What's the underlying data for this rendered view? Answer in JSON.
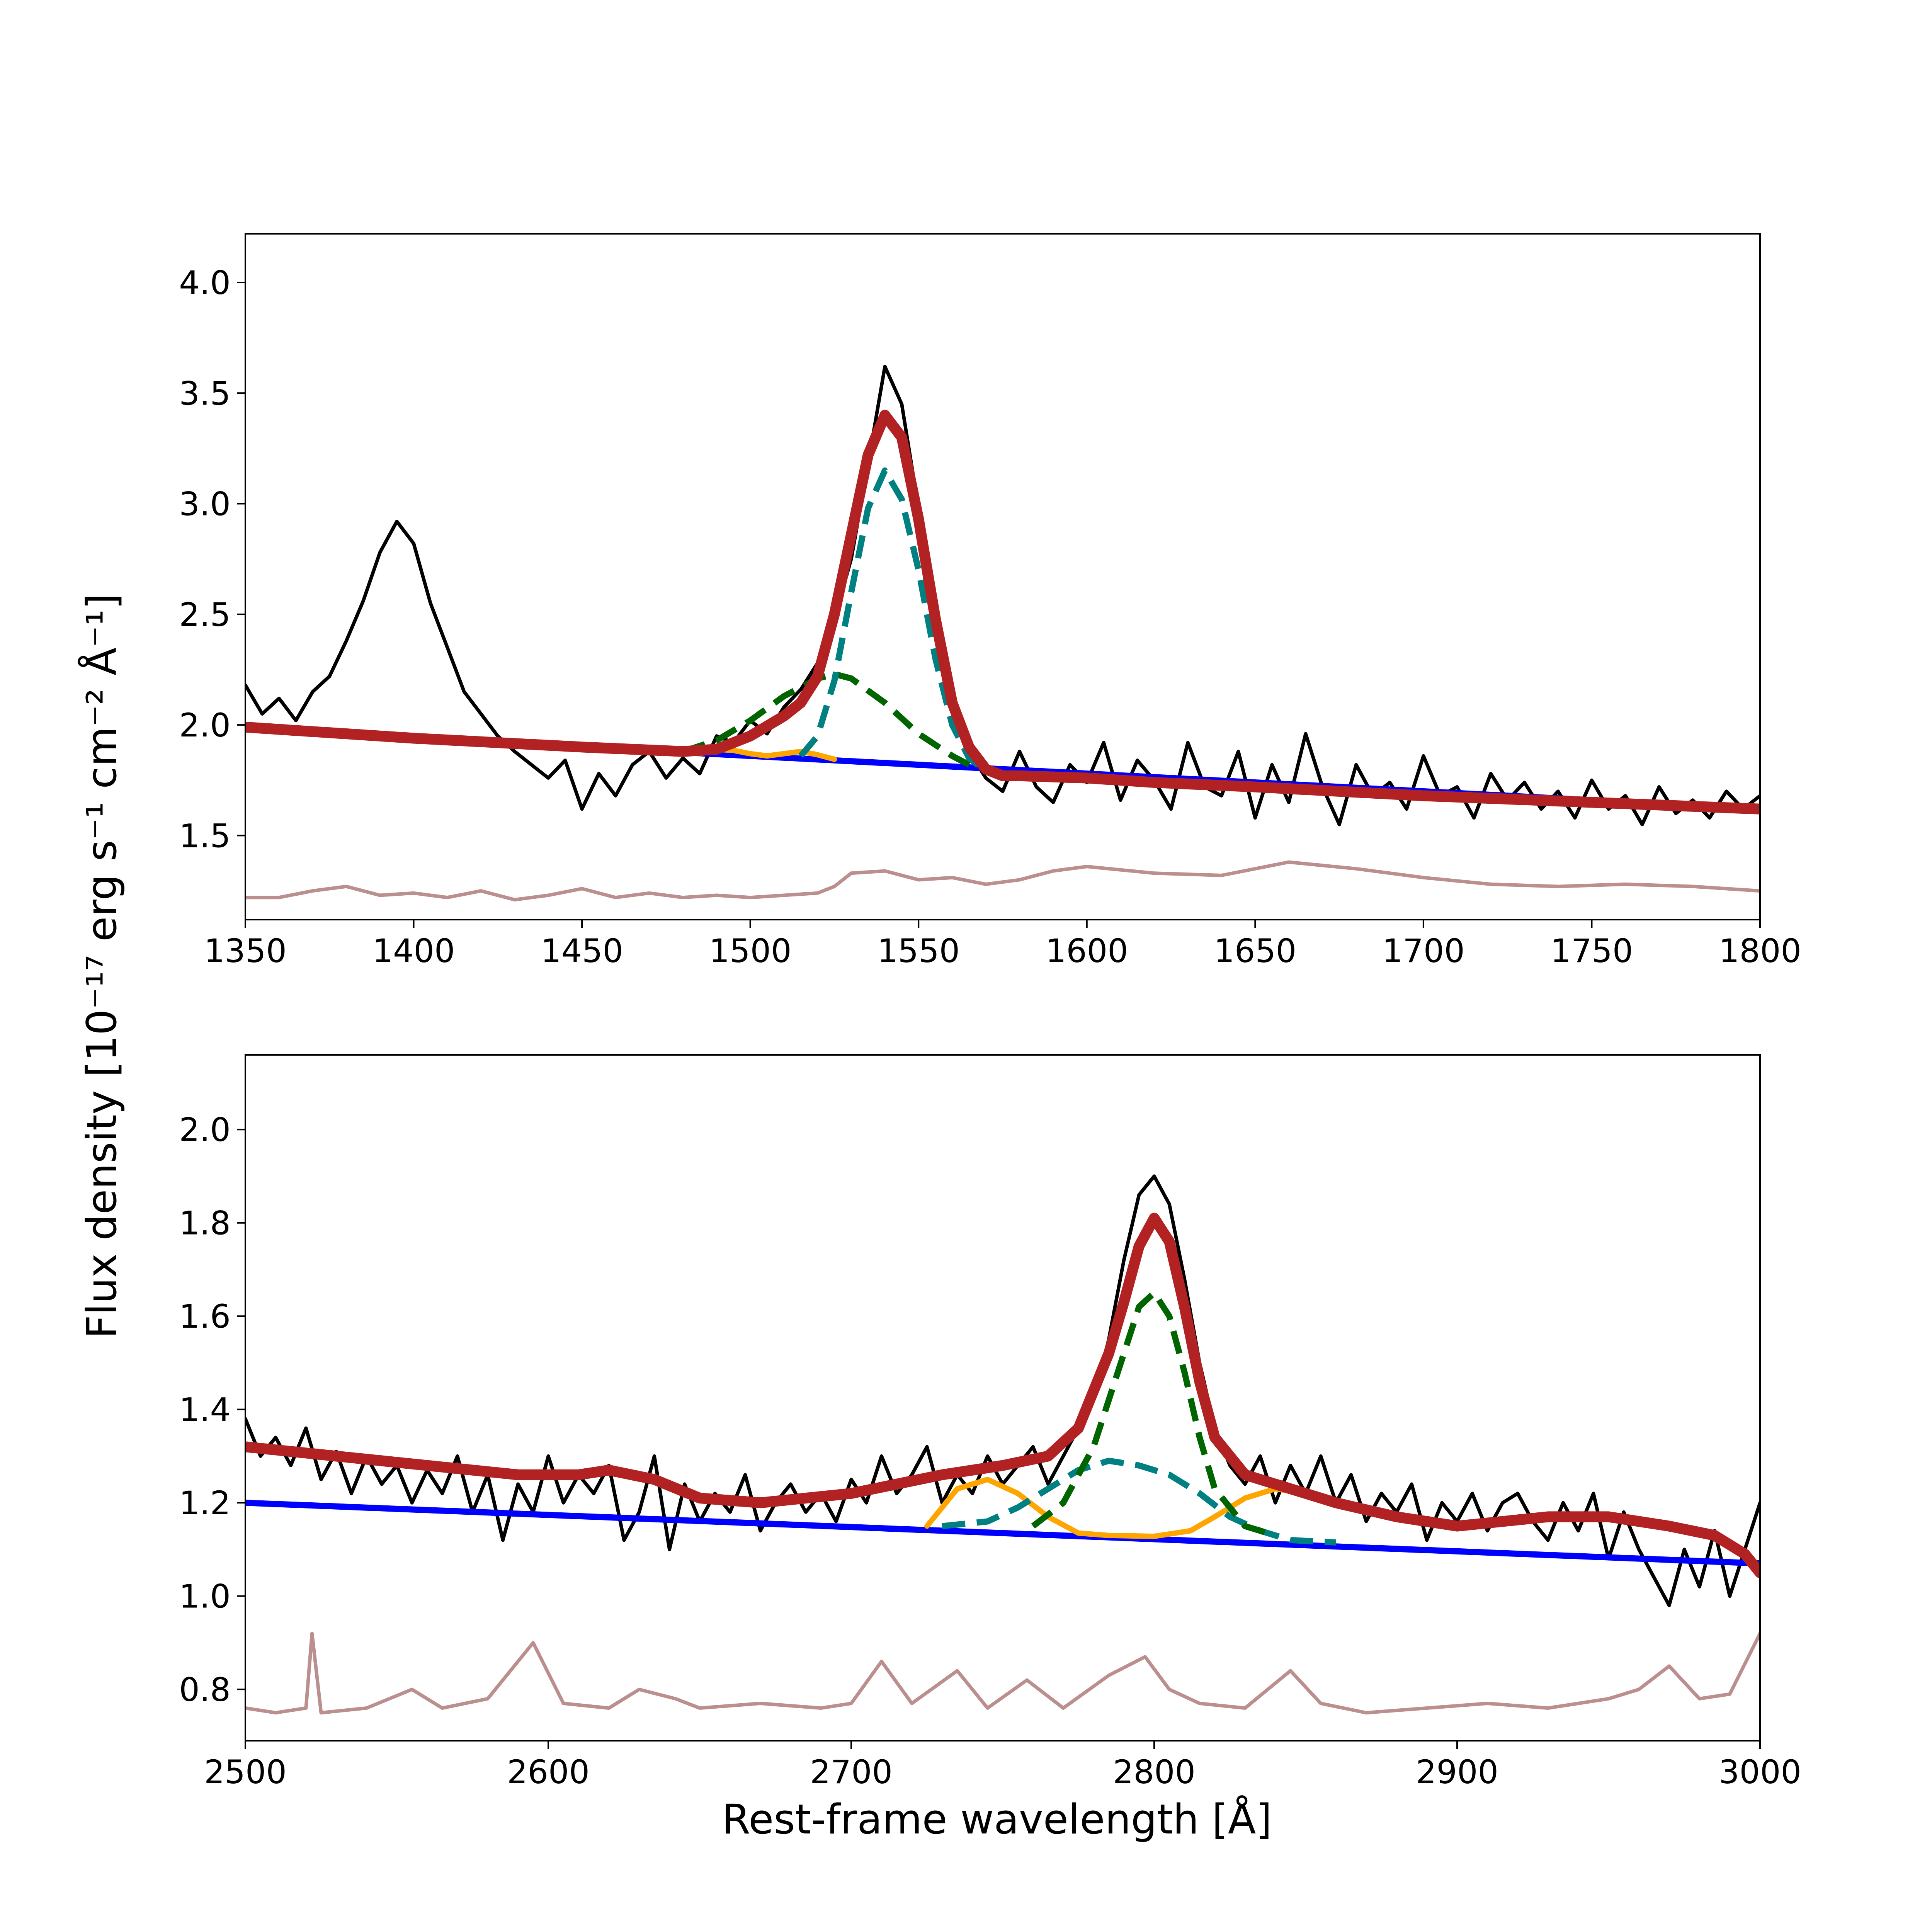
{
  "figure": {
    "xlabel": "Rest-frame wavelength  [Å]",
    "ylabel": "Flux density [10⁻¹⁷ erg s⁻¹ cm⁻² Å⁻¹]"
  },
  "colors": {
    "data": "#000000",
    "error": "#bc8f8f",
    "continuum": "#0000ff",
    "total_fit": "#b22222",
    "narrow_component": "#008080",
    "broad_component": "#006400",
    "feii": "#ffa500"
  },
  "chart_data": [
    {
      "type": "line",
      "panel": "top",
      "title": "",
      "xlabel": "",
      "ylabel": "",
      "xlim": [
        1350,
        1800
      ],
      "ylim": [
        1.12,
        4.22
      ],
      "xticks": [
        "1350",
        "1400",
        "1450",
        "1500",
        "1550",
        "1600",
        "1650",
        "1700",
        "1750",
        "1800"
      ],
      "yticks": [
        "1.5",
        "2.0",
        "2.5",
        "3.0",
        "3.5",
        "4.0"
      ],
      "grid": false,
      "legend": "none",
      "series": [
        {
          "name": "error",
          "style": "solid",
          "x": [
            1350,
            1360,
            1370,
            1380,
            1390,
            1400,
            1410,
            1420,
            1430,
            1440,
            1450,
            1460,
            1470,
            1480,
            1490,
            1500,
            1510,
            1520,
            1525,
            1530,
            1540,
            1550,
            1560,
            1570,
            1580,
            1590,
            1600,
            1620,
            1640,
            1660,
            1680,
            1700,
            1720,
            1740,
            1760,
            1780,
            1800
          ],
          "y": [
            1.22,
            1.22,
            1.25,
            1.27,
            1.23,
            1.24,
            1.22,
            1.25,
            1.21,
            1.23,
            1.26,
            1.22,
            1.24,
            1.22,
            1.23,
            1.22,
            1.23,
            1.24,
            1.27,
            1.33,
            1.34,
            1.3,
            1.31,
            1.28,
            1.3,
            1.34,
            1.36,
            1.33,
            1.32,
            1.38,
            1.35,
            1.31,
            1.28,
            1.27,
            1.28,
            1.27,
            1.25
          ]
        },
        {
          "name": "spectrum",
          "style": "solid",
          "x": [
            1350,
            1355,
            1360,
            1365,
            1370,
            1375,
            1380,
            1385,
            1390,
            1395,
            1400,
            1405,
            1410,
            1415,
            1420,
            1425,
            1430,
            1435,
            1440,
            1445,
            1450,
            1455,
            1460,
            1465,
            1470,
            1475,
            1480,
            1485,
            1490,
            1495,
            1500,
            1505,
            1510,
            1515,
            1520,
            1525,
            1530,
            1535,
            1540,
            1545,
            1550,
            1555,
            1560,
            1565,
            1570,
            1575,
            1580,
            1585,
            1590,
            1595,
            1600,
            1605,
            1610,
            1615,
            1620,
            1625,
            1630,
            1635,
            1640,
            1645,
            1650,
            1655,
            1660,
            1665,
            1670,
            1675,
            1680,
            1685,
            1690,
            1695,
            1700,
            1705,
            1710,
            1715,
            1720,
            1725,
            1730,
            1735,
            1740,
            1745,
            1750,
            1755,
            1760,
            1765,
            1770,
            1775,
            1780,
            1785,
            1790,
            1795,
            1800
          ],
          "y": [
            2.18,
            2.05,
            2.12,
            2.02,
            2.15,
            2.22,
            2.38,
            2.56,
            2.78,
            2.92,
            2.82,
            2.55,
            2.35,
            2.15,
            2.05,
            1.95,
            1.88,
            1.82,
            1.76,
            1.84,
            1.62,
            1.78,
            1.68,
            1.82,
            1.88,
            1.76,
            1.85,
            1.78,
            1.95,
            1.92,
            2.02,
            1.96,
            2.08,
            2.16,
            2.28,
            2.48,
            2.75,
            3.18,
            3.62,
            3.45,
            2.98,
            2.42,
            2.08,
            1.88,
            1.76,
            1.7,
            1.88,
            1.72,
            1.65,
            1.82,
            1.74,
            1.92,
            1.66,
            1.84,
            1.75,
            1.62,
            1.92,
            1.72,
            1.68,
            1.88,
            1.58,
            1.82,
            1.65,
            1.96,
            1.72,
            1.55,
            1.82,
            1.68,
            1.74,
            1.62,
            1.86,
            1.68,
            1.72,
            1.58,
            1.78,
            1.66,
            1.74,
            1.62,
            1.7,
            1.58,
            1.75,
            1.62,
            1.68,
            1.55,
            1.72,
            1.6,
            1.66,
            1.58,
            1.7,
            1.62,
            1.68
          ]
        },
        {
          "name": "continuum",
          "style": "solid",
          "x": [
            1350,
            1800
          ],
          "y": [
            1.98,
            1.62
          ]
        },
        {
          "name": "feii",
          "style": "solid",
          "x": [
            1485,
            1490,
            1495,
            1500,
            1505,
            1510,
            1515,
            1520,
            1525
          ],
          "y": [
            1.87,
            1.89,
            1.885,
            1.87,
            1.86,
            1.87,
            1.88,
            1.865,
            1.845
          ]
        },
        {
          "name": "broad_component",
          "style": "dashed",
          "x": [
            1480,
            1490,
            1500,
            1510,
            1520,
            1525,
            1530,
            1540,
            1550,
            1560,
            1565
          ],
          "y": [
            1.88,
            1.93,
            2.02,
            2.13,
            2.21,
            2.23,
            2.21,
            2.1,
            1.96,
            1.86,
            1.82
          ]
        },
        {
          "name": "narrow_component",
          "style": "dashed",
          "x": [
            1515,
            1520,
            1525,
            1530,
            1535,
            1540,
            1545,
            1550,
            1555,
            1560,
            1565,
            1570
          ],
          "y": [
            1.86,
            1.95,
            2.2,
            2.6,
            2.98,
            3.15,
            3.02,
            2.7,
            2.3,
            2.0,
            1.85,
            1.79
          ]
        },
        {
          "name": "total_fit",
          "style": "solid",
          "x": [
            1350,
            1400,
            1450,
            1480,
            1490,
            1500,
            1510,
            1515,
            1520,
            1525,
            1530,
            1535,
            1540,
            1545,
            1550,
            1555,
            1560,
            1565,
            1570,
            1575,
            1580,
            1600,
            1620,
            1650,
            1700,
            1750,
            1800
          ],
          "y": [
            1.99,
            1.94,
            1.9,
            1.88,
            1.89,
            1.95,
            2.04,
            2.1,
            2.22,
            2.5,
            2.86,
            3.22,
            3.4,
            3.3,
            2.93,
            2.48,
            2.1,
            1.9,
            1.8,
            1.77,
            1.77,
            1.76,
            1.74,
            1.72,
            1.68,
            1.65,
            1.62
          ]
        }
      ]
    },
    {
      "type": "line",
      "panel": "bottom",
      "title": "",
      "xlabel": "Rest-frame wavelength  [Å]",
      "ylabel": "",
      "xlim": [
        2500,
        3000
      ],
      "ylim": [
        0.69,
        2.16
      ],
      "xticks": [
        "2500",
        "2600",
        "2700",
        "2800",
        "2900",
        "3000"
      ],
      "yticks": [
        "0.8",
        "1.0",
        "1.2",
        "1.4",
        "1.6",
        "1.8",
        "2.0"
      ],
      "grid": false,
      "legend": "none",
      "series": [
        {
          "name": "error",
          "style": "solid",
          "x": [
            2500,
            2510,
            2520,
            2522,
            2525,
            2540,
            2555,
            2565,
            2580,
            2595,
            2605,
            2620,
            2630,
            2642,
            2650,
            2670,
            2690,
            2700,
            2710,
            2720,
            2735,
            2745,
            2758,
            2770,
            2785,
            2797,
            2805,
            2815,
            2830,
            2845,
            2855,
            2870,
            2890,
            2910,
            2930,
            2950,
            2960,
            2970,
            2980,
            2990,
            3000
          ],
          "y": [
            0.76,
            0.75,
            0.76,
            0.92,
            0.75,
            0.76,
            0.8,
            0.76,
            0.78,
            0.9,
            0.77,
            0.76,
            0.8,
            0.78,
            0.76,
            0.77,
            0.76,
            0.77,
            0.86,
            0.77,
            0.84,
            0.76,
            0.82,
            0.76,
            0.83,
            0.87,
            0.8,
            0.77,
            0.76,
            0.84,
            0.77,
            0.75,
            0.76,
            0.77,
            0.76,
            0.78,
            0.8,
            0.85,
            0.78,
            0.79,
            0.92
          ]
        },
        {
          "name": "spectrum",
          "style": "solid",
          "x": [
            2500,
            2505,
            2510,
            2515,
            2520,
            2525,
            2530,
            2535,
            2540,
            2545,
            2550,
            2555,
            2560,
            2565,
            2570,
            2575,
            2580,
            2585,
            2590,
            2595,
            2600,
            2605,
            2610,
            2615,
            2620,
            2625,
            2630,
            2635,
            2640,
            2645,
            2650,
            2655,
            2660,
            2665,
            2670,
            2675,
            2680,
            2685,
            2690,
            2695,
            2700,
            2705,
            2710,
            2715,
            2720,
            2725,
            2730,
            2735,
            2740,
            2745,
            2750,
            2755,
            2760,
            2765,
            2770,
            2775,
            2780,
            2785,
            2790,
            2795,
            2800,
            2805,
            2810,
            2815,
            2820,
            2825,
            2830,
            2835,
            2840,
            2845,
            2850,
            2855,
            2860,
            2865,
            2870,
            2875,
            2880,
            2885,
            2890,
            2895,
            2900,
            2905,
            2910,
            2915,
            2920,
            2925,
            2930,
            2935,
            2940,
            2945,
            2950,
            2955,
            2960,
            2965,
            2970,
            2975,
            2980,
            2985,
            2990,
            2995,
            3000
          ],
          "y": [
            1.38,
            1.3,
            1.34,
            1.28,
            1.36,
            1.25,
            1.31,
            1.22,
            1.3,
            1.24,
            1.28,
            1.2,
            1.27,
            1.22,
            1.3,
            1.18,
            1.26,
            1.12,
            1.24,
            1.18,
            1.3,
            1.2,
            1.26,
            1.22,
            1.28,
            1.12,
            1.18,
            1.3,
            1.1,
            1.24,
            1.16,
            1.22,
            1.18,
            1.26,
            1.14,
            1.2,
            1.24,
            1.18,
            1.22,
            1.16,
            1.25,
            1.2,
            1.3,
            1.22,
            1.26,
            1.32,
            1.2,
            1.26,
            1.22,
            1.3,
            1.24,
            1.28,
            1.32,
            1.24,
            1.3,
            1.36,
            1.42,
            1.55,
            1.72,
            1.86,
            1.9,
            1.84,
            1.68,
            1.5,
            1.36,
            1.28,
            1.24,
            1.3,
            1.2,
            1.28,
            1.22,
            1.3,
            1.2,
            1.26,
            1.16,
            1.22,
            1.18,
            1.24,
            1.12,
            1.2,
            1.16,
            1.22,
            1.14,
            1.2,
            1.22,
            1.16,
            1.12,
            1.2,
            1.14,
            1.22,
            1.08,
            1.18,
            1.1,
            1.04,
            0.98,
            1.1,
            1.02,
            1.14,
            1.0,
            1.1,
            1.2
          ]
        },
        {
          "name": "continuum",
          "style": "solid",
          "x": [
            2500,
            3000
          ],
          "y": [
            1.2,
            1.07
          ]
        },
        {
          "name": "feii",
          "style": "solid",
          "x": [
            2725,
            2735,
            2745,
            2755,
            2765,
            2775,
            2785,
            2800,
            2812,
            2820,
            2830,
            2840,
            2850
          ],
          "y": [
            1.15,
            1.23,
            1.25,
            1.22,
            1.17,
            1.135,
            1.13,
            1.128,
            1.14,
            1.17,
            1.21,
            1.23,
            1.22
          ]
        },
        {
          "name": "narrow_component",
          "style": "dashed",
          "x": [
            2730,
            2745,
            2755,
            2765,
            2775,
            2785,
            2795,
            2805,
            2815,
            2825,
            2835,
            2845,
            2860
          ],
          "y": [
            1.15,
            1.16,
            1.19,
            1.23,
            1.27,
            1.29,
            1.28,
            1.26,
            1.22,
            1.17,
            1.14,
            1.12,
            1.115
          ]
        },
        {
          "name": "broad_component",
          "style": "dashed",
          "x": [
            2760,
            2770,
            2780,
            2790,
            2795,
            2800,
            2805,
            2810,
            2815,
            2820,
            2830,
            2840
          ],
          "y": [
            1.15,
            1.2,
            1.32,
            1.52,
            1.62,
            1.65,
            1.6,
            1.48,
            1.34,
            1.23,
            1.15,
            1.13
          ]
        },
        {
          "name": "total_fit",
          "style": "solid",
          "x": [
            2500,
            2530,
            2560,
            2590,
            2610,
            2620,
            2635,
            2650,
            2670,
            2700,
            2730,
            2750,
            2765,
            2775,
            2785,
            2790,
            2795,
            2800,
            2805,
            2810,
            2815,
            2820,
            2830,
            2845,
            2860,
            2880,
            2900,
            2915,
            2930,
            2950,
            2970,
            2985,
            2995,
            3000
          ],
          "y": [
            1.32,
            1.3,
            1.28,
            1.26,
            1.26,
            1.27,
            1.25,
            1.21,
            1.2,
            1.22,
            1.26,
            1.28,
            1.3,
            1.36,
            1.52,
            1.63,
            1.75,
            1.81,
            1.76,
            1.62,
            1.46,
            1.34,
            1.26,
            1.23,
            1.2,
            1.17,
            1.15,
            1.16,
            1.17,
            1.17,
            1.15,
            1.13,
            1.09,
            1.05
          ]
        }
      ]
    }
  ]
}
